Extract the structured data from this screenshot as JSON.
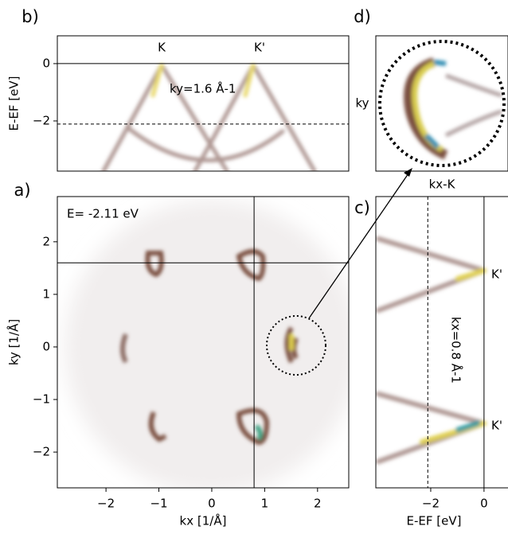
{
  "chart_data": [
    {
      "type": "image",
      "panel_label": "b)",
      "ylabel": "E-EF [eV]",
      "xlim": [
        -2.92,
        2.59
      ],
      "ylim": [
        -3.75,
        0.97
      ],
      "yticks": [
        0,
        {
          "value": -2,
          "label": "−2"
        }
      ],
      "solid_hline": 0,
      "dashed_hline": -2.11,
      "annotations": [
        "K",
        "K'",
        "ky=1.6 Å-1"
      ]
    },
    {
      "type": "image",
      "panel_label": "a)",
      "title": "E= -2.11 eV",
      "xlabel": "kx [1/Å]",
      "ylabel": "ky [1/Å]",
      "xlim": [
        -2.92,
        2.59
      ],
      "ylim": [
        -2.68,
        2.86
      ],
      "xticks": [
        {
          "value": -2,
          "label": "−2"
        },
        {
          "value": -1,
          "label": "−1"
        },
        0,
        1,
        2
      ],
      "yticks": [
        {
          "value": -2,
          "label": "−2"
        },
        {
          "value": -1,
          "label": "−1"
        },
        0,
        1,
        2
      ],
      "cut_x": 0.8,
      "cut_y": 1.6
    },
    {
      "type": "image",
      "panel_label": "c)",
      "xlabel": "E-EF [eV]",
      "xlim": [
        -4.06,
        0.9
      ],
      "ylim": [
        -2.68,
        2.86
      ],
      "xticks": [
        {
          "value": -2,
          "label": "−2"
        },
        0
      ],
      "solid_vline": 0,
      "dashed_vline": -2.11,
      "annotations": [
        "K'",
        "K'",
        "kx=0.8 Å-1"
      ]
    },
    {
      "type": "image",
      "panel_label": "d)",
      "xlabel": "kx-K",
      "ylabel": "ky"
    }
  ]
}
